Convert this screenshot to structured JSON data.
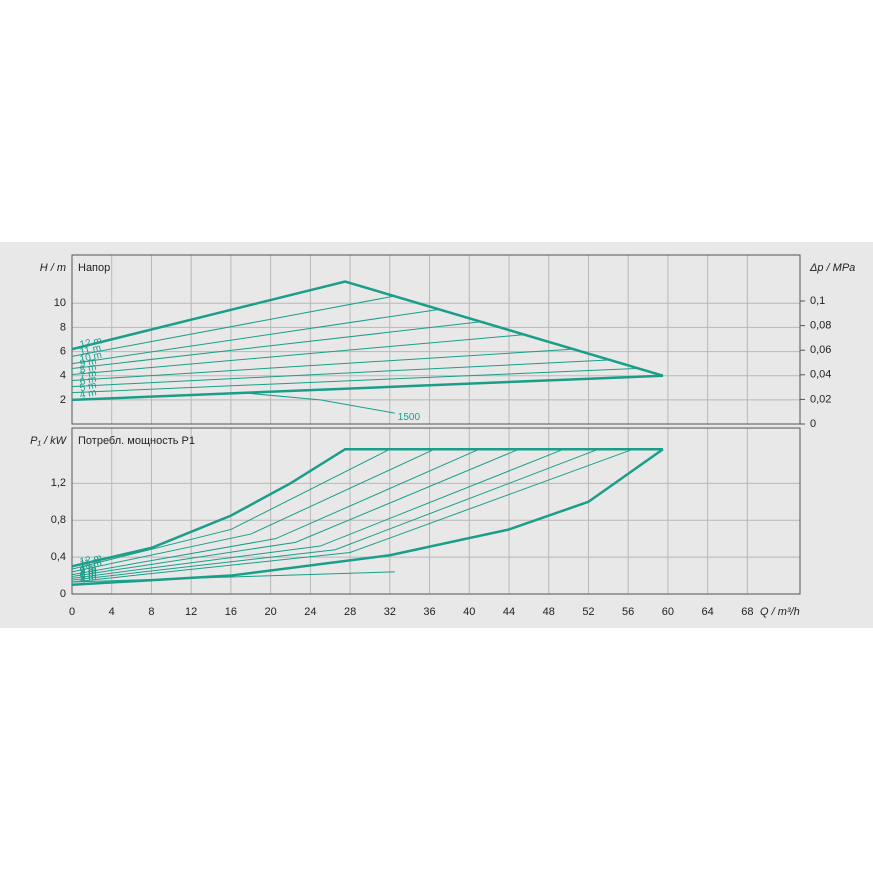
{
  "chart_data": [
    {
      "type": "line",
      "title": "Напор",
      "ylabel": "H / m",
      "y2label": "Δp / MPa",
      "xlim": [
        0,
        73.3
      ],
      "ylim": [
        0,
        14
      ],
      "y2lim": [
        0,
        0.1374
      ],
      "yticks": [
        2,
        4,
        6,
        8,
        10
      ],
      "y2ticks": [
        0,
        {
          "value": 0.02,
          "label": "0,02"
        },
        {
          "value": 0.04,
          "label": "0,04"
        },
        {
          "value": 0.06,
          "label": "0,06"
        },
        {
          "value": 0.08,
          "label": "0,08"
        },
        {
          "value": 0.1,
          "label": "0,1"
        }
      ],
      "grid": true,
      "series": [
        {
          "name": "12 m",
          "color": "#1a9e8a",
          "bold": true,
          "label_position": "start",
          "x": [
            0,
            27.5,
            59.5
          ],
          "values": [
            6.2,
            11.8,
            4.0
          ]
        },
        {
          "name": "11 m",
          "color": "#1a9e8a",
          "bold": false,
          "label_position": "start",
          "x": [
            0,
            32.5
          ],
          "values": [
            5.6,
            10.6
          ]
        },
        {
          "name": "10 m",
          "color": "#1a9e8a",
          "bold": false,
          "label_position": "start",
          "x": [
            0,
            37
          ],
          "values": [
            5.0,
            9.5
          ]
        },
        {
          "name": "9 m",
          "color": "#1a9e8a",
          "bold": false,
          "label_position": "start",
          "x": [
            0,
            41.5
          ],
          "values": [
            4.6,
            8.5
          ]
        },
        {
          "name": "8 m",
          "color": "#1a9e8a",
          "bold": false,
          "label_position": "start",
          "x": [
            0,
            45.5
          ],
          "values": [
            4.1,
            7.4
          ]
        },
        {
          "name": "7 m",
          "color": "#1a9e8a",
          "bold": false,
          "label_position": "start",
          "x": [
            0,
            50.5
          ],
          "values": [
            3.6,
            6.2
          ]
        },
        {
          "name": "6 m",
          "color": "#1a9e8a",
          "bold": false,
          "label_position": "start",
          "x": [
            0,
            54
          ],
          "values": [
            3.1,
            5.3
          ]
        },
        {
          "name": "5 m",
          "color": "#1a9e8a",
          "bold": false,
          "label_position": "start",
          "x": [
            0,
            57
          ],
          "values": [
            2.6,
            4.6
          ]
        },
        {
          "name": "4 m",
          "color": "#1a9e8a",
          "bold": true,
          "label_position": "start",
          "x": [
            0,
            59.5
          ],
          "values": [
            2.0,
            4.0
          ]
        },
        {
          "name": "1500",
          "color": "#1a9e8a",
          "bold": false,
          "label_position": "end",
          "x": [
            17,
            25,
            32.5
          ],
          "values": [
            2.6,
            2.0,
            0.9
          ]
        }
      ]
    },
    {
      "type": "line",
      "title": "Потребл. мощность P1",
      "ylabel": "P₁ / kW",
      "xlabel": "Q / m³/h",
      "xlim": [
        0,
        73.3
      ],
      "ylim": [
        0,
        1.8
      ],
      "yticks": [
        0,
        {
          "value": 0.4,
          "label": "0,4"
        },
        {
          "value": 0.8,
          "label": "0,8"
        },
        {
          "value": 1.2,
          "label": "1,2"
        }
      ],
      "xticks": [
        0,
        4,
        8,
        12,
        16,
        20,
        24,
        28,
        32,
        36,
        40,
        44,
        48,
        52,
        56,
        60,
        64,
        68
      ],
      "grid": true,
      "series": [
        {
          "name": "12 m",
          "color": "#1a9e8a",
          "bold": true,
          "label_position": "start",
          "x": [
            0,
            8,
            16,
            22,
            27.5,
            59.5
          ],
          "values": [
            0.3,
            0.5,
            0.85,
            1.2,
            1.57,
            1.57
          ]
        },
        {
          "name": "11 m",
          "color": "#1a9e8a",
          "bold": false,
          "label_position": "start",
          "x": [
            0,
            16,
            32
          ],
          "values": [
            0.27,
            0.7,
            1.57
          ]
        },
        {
          "name": "10 m",
          "color": "#1a9e8a",
          "bold": false,
          "label_position": "start",
          "x": [
            0,
            18,
            36.5
          ],
          "values": [
            0.24,
            0.65,
            1.57
          ]
        },
        {
          "name": "9 m",
          "color": "#1a9e8a",
          "bold": false,
          "label_position": "start",
          "x": [
            0,
            20.5,
            41
          ],
          "values": [
            0.21,
            0.6,
            1.57
          ]
        },
        {
          "name": "8 m",
          "color": "#1a9e8a",
          "bold": false,
          "label_position": "start",
          "x": [
            0,
            22.5,
            45
          ],
          "values": [
            0.19,
            0.56,
            1.57
          ]
        },
        {
          "name": "7 m",
          "color": "#1a9e8a",
          "bold": false,
          "label_position": "start",
          "x": [
            0,
            25,
            49.5
          ],
          "values": [
            0.17,
            0.52,
            1.57
          ]
        },
        {
          "name": "6 m",
          "color": "#1a9e8a",
          "bold": false,
          "label_position": "start",
          "x": [
            0,
            26.5,
            53
          ],
          "values": [
            0.15,
            0.48,
            1.57
          ]
        },
        {
          "name": "5 m",
          "color": "#1a9e8a",
          "bold": false,
          "label_position": "start",
          "x": [
            0,
            28,
            56.5
          ],
          "values": [
            0.13,
            0.45,
            1.57
          ]
        },
        {
          "name": "4 m",
          "color": "#1a9e8a",
          "bold": true,
          "label_position": "start",
          "x": [
            0,
            16,
            32,
            44,
            52,
            59.5
          ],
          "values": [
            0.1,
            0.2,
            0.42,
            0.7,
            1.0,
            1.57
          ]
        },
        {
          "color": "#1a9e8a",
          "bold": false,
          "x": [
            0,
            32.5
          ],
          "values": [
            0.13,
            0.24
          ]
        }
      ]
    }
  ]
}
